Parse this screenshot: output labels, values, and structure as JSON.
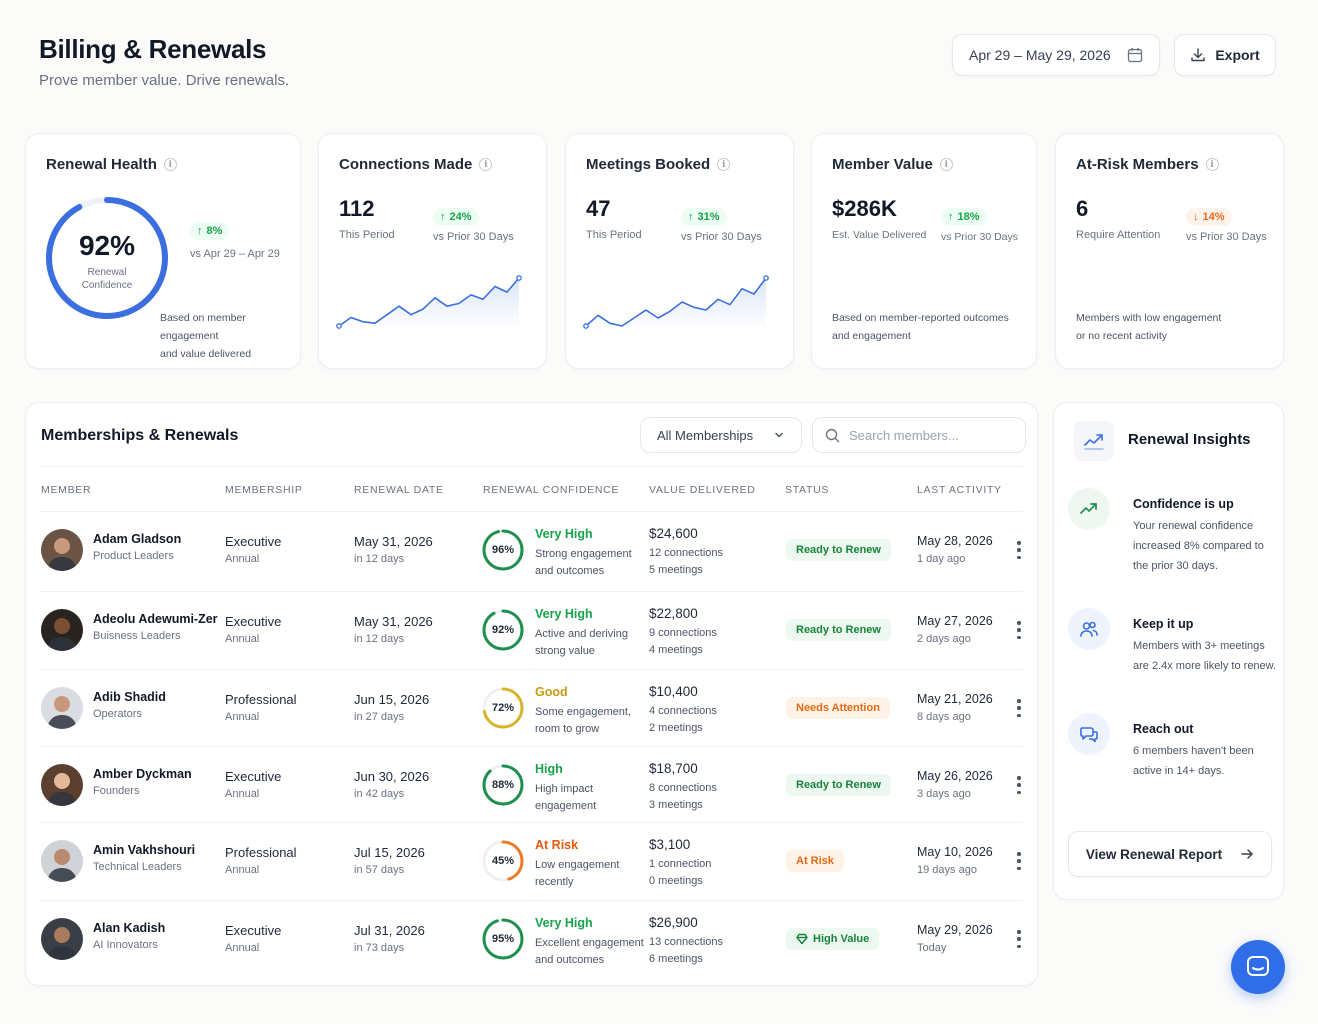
{
  "header": {
    "title": "Billing & Renewals",
    "subtitle": "Prove member value. Drive renewals.",
    "date_range": "Apr 29 – May 29, 2026",
    "export_label": "Export"
  },
  "kpis": {
    "renewal_health": {
      "title": "Renewal Health",
      "value": "92%",
      "gauge_fraction": 0.92,
      "gauge_label_1": "Renewal",
      "gauge_label_2": "Confidence",
      "delta": "8%",
      "delta_label": "vs Apr 29 – Apr 29",
      "note_1": "Based on member engagement",
      "note_2": "and value delivered"
    },
    "connections": {
      "title": "Connections Made",
      "value": "112",
      "sub": "This Period",
      "delta": "24%",
      "delta_label": "vs Prior 30 Days",
      "trend": [
        6,
        12,
        9,
        8,
        14,
        20,
        14,
        18,
        26,
        20,
        22,
        28,
        25,
        34,
        30,
        40
      ]
    },
    "meetings": {
      "title": "Meetings Booked",
      "value": "47",
      "sub": "This Period",
      "delta": "31%",
      "delta_label": "vs Prior 30 Days",
      "trend": [
        6,
        14,
        8,
        6,
        12,
        18,
        12,
        17,
        24,
        20,
        18,
        26,
        22,
        34,
        30,
        42
      ]
    },
    "member_value": {
      "title": "Member Value",
      "value": "$286K",
      "sub": "Est. Value Delivered",
      "delta": "18%",
      "delta_label": "vs Prior 30 Days",
      "note_1": "Based on member-reported outcomes",
      "note_2": "and engagement"
    },
    "at_risk": {
      "title": "At-Risk Members",
      "value": "6",
      "sub": "Require Attention",
      "delta": "14%",
      "delta_label": "vs Prior 30 Days",
      "note_1": "Members with low engagement",
      "note_2": "or no recent activity"
    }
  },
  "table": {
    "title": "Memberships & Renewals",
    "filter_value": "All Memberships",
    "search_placeholder": "Search members...",
    "columns": [
      "MEMBER",
      "MEMBERSHIP",
      "RENEWAL DATE",
      "RENEWAL CONFIDENCE",
      "VALUE DELIVERED",
      "STATUS",
      "LAST ACTIVITY"
    ],
    "rows": [
      {
        "name": "Adam Gladson",
        "team": "Product Leaders",
        "membership": "Executive",
        "term": "Annual",
        "renewal_date": "May 31, 2026",
        "renewal_in": "in 12 days",
        "confidence": 96,
        "confidence_label": "96%",
        "level": "Very High",
        "level_color": "#16a34a",
        "ring_color": "#1f8f4e",
        "desc_1": "Strong engagement",
        "desc_2": "and outcomes",
        "value": "$24,600",
        "connections": "12 connections",
        "meetings": "5 meetings",
        "status": "Ready to Renew",
        "status_style": "green",
        "last_date": "May 28, 2026",
        "last_rel": "1 day ago",
        "avatar_bg": "#6b5446",
        "avatar_skin": "#c89a7c"
      },
      {
        "name": "Adeolu Adewumi-Zer",
        "team": "Buisness Leaders",
        "membership": "Executive",
        "term": "Annual",
        "renewal_date": "May 31, 2026",
        "renewal_in": "in 12 days",
        "confidence": 92,
        "confidence_label": "92%",
        "level": "Very High",
        "level_color": "#16a34a",
        "ring_color": "#1f8f4e",
        "desc_1": "Active and deriving",
        "desc_2": "strong value",
        "value": "$22,800",
        "connections": "9 connections",
        "meetings": "4 meetings",
        "status": "Ready to Renew",
        "status_style": "green",
        "last_date": "May 27, 2026",
        "last_rel": "2 days ago",
        "avatar_bg": "#2a2420",
        "avatar_skin": "#7a4e33"
      },
      {
        "name": "Adib Shadid",
        "team": "Operators",
        "membership": "Professional",
        "term": "Annual",
        "renewal_date": "Jun 15, 2026",
        "renewal_in": "in 27 days",
        "confidence": 72,
        "confidence_label": "72%",
        "level": "Good",
        "level_color": "#c99a12",
        "ring_color": "#d6b52c",
        "desc_1": "Some engagement,",
        "desc_2": "room to grow",
        "value": "$10,400",
        "connections": "4 connections",
        "meetings": "2 meetings",
        "status": "Needs Attention",
        "status_style": "orange",
        "last_date": "May 21, 2026",
        "last_rel": "8 days ago",
        "avatar_bg": "#d9dce1",
        "avatar_skin": "#c9977b"
      },
      {
        "name": "Amber Dyckman",
        "team": "Founders",
        "membership": "Executive",
        "term": "Annual",
        "renewal_date": "Jun 30, 2026",
        "renewal_in": "in 42 days",
        "confidence": 88,
        "confidence_label": "88%",
        "level": "High",
        "level_color": "#16a34a",
        "ring_color": "#1f8f4e",
        "desc_1": "High impact",
        "desc_2": "engagement",
        "value": "$18,700",
        "connections": "8 connections",
        "meetings": "3 meetings",
        "status": "Ready to Renew",
        "status_style": "green",
        "last_date": "May 26, 2026",
        "last_rel": "3 days ago",
        "avatar_bg": "#5b4030",
        "avatar_skin": "#e2b99a"
      },
      {
        "name": "Amin Vakhshouri",
        "team": "Technical Leaders",
        "membership": "Professional",
        "term": "Annual",
        "renewal_date": "Jul 15, 2026",
        "renewal_in": "in 57 days",
        "confidence": 45,
        "confidence_label": "45%",
        "level": "At Risk",
        "level_color": "#ea580c",
        "ring_color": "#ee7a2a",
        "desc_1": "Low engagement",
        "desc_2": "recently",
        "value": "$3,100",
        "connections": "1 connection",
        "meetings": "0 meetings",
        "status": "At Risk",
        "status_style": "orange",
        "last_date": "May 10, 2026",
        "last_rel": "19 days ago",
        "avatar_bg": "#cfd3d8",
        "avatar_skin": "#b98a6e"
      },
      {
        "name": "Alan Kadish",
        "team": "AI Innovators",
        "membership": "Executive",
        "term": "Annual",
        "renewal_date": "Jul 31, 2026",
        "renewal_in": "in 73 days",
        "confidence": 95,
        "confidence_label": "95%",
        "level": "Very High",
        "level_color": "#16a34a",
        "ring_color": "#1f8f4e",
        "desc_1": "Excellent engagement",
        "desc_2": "and outcomes",
        "value": "$26,900",
        "connections": "13 connections",
        "meetings": "6 meetings",
        "status": "High Value",
        "status_style": "green",
        "status_icon": "diamond-icon",
        "last_date": "May 29, 2026",
        "last_rel": "Today",
        "avatar_bg": "#3a3f47",
        "avatar_skin": "#a97a5c"
      }
    ]
  },
  "insights": {
    "title": "Renewal Insights",
    "items": [
      {
        "icon": "trend-up-icon",
        "title": "Confidence is up",
        "lines": [
          "Your renewal confidence",
          "increased 8% compared to",
          "the prior 30 days."
        ]
      },
      {
        "icon": "users-icon",
        "title": "Keep it up",
        "lines": [
          "Members with 3+ meetings",
          "are 2.4x more likely to renew."
        ]
      },
      {
        "icon": "chat-icon",
        "title": "Reach out",
        "lines": [
          "6 members haven't been",
          "active in 14+ days."
        ]
      }
    ],
    "report_label": "View Renewal Report"
  },
  "colors": {
    "accent": "#2f6ee8",
    "gauge": "#3b6fe0",
    "sparkline": "#3b6fe0",
    "green": "#16a34a",
    "orange": "#ea580c"
  }
}
